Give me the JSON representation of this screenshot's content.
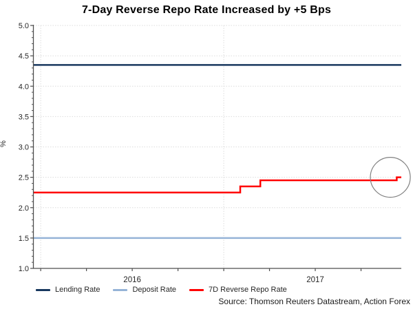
{
  "title": "7-Day Reverse Repo Rate Increased by +5 Bps",
  "source": "Source: Thomson Reuters Datastream, Action Forex",
  "legend": [
    {
      "label": "Lending Rate",
      "color": "#17375E"
    },
    {
      "label": "Deposit Rate",
      "color": "#95B3D7"
    },
    {
      "label": "7D Reverse Repo Rate",
      "color": "#FF0000"
    }
  ],
  "colors": {
    "gridline": "#DCDCDC",
    "axis": "#4D4D4D",
    "tick_label": "#262626",
    "annotation_circle": "#808080"
  },
  "chart_data": {
    "type": "line",
    "title": "7-Day Reverse Repo Rate Increased by +5 Bps",
    "xlabel": "",
    "ylabel": "%",
    "ylim": [
      1.0,
      5.0
    ],
    "y_tick_step": 0.5,
    "y_minor_tick_step": 0.1,
    "y_tick_labels": [
      "5.0",
      "4.5",
      "4.0",
      "3.5",
      "3.0",
      "2.5",
      "2.0",
      "1.5",
      "1.0"
    ],
    "xlim": [
      2015.96,
      2017.97
    ],
    "x_year_gridlines": [
      2016,
      2017
    ],
    "x_quarter_ticks": [
      2016.0,
      2016.25,
      2016.5,
      2016.75,
      2017.0,
      2017.25,
      2017.5,
      2017.75
    ],
    "x_year_labels": [
      {
        "text": "2016",
        "x": 2016.5
      },
      {
        "text": "2017",
        "x": 2017.5
      }
    ],
    "grid": true,
    "legend_position": "bottom",
    "series": [
      {
        "name": "Lending Rate",
        "color": "#17375E",
        "step_points": [
          {
            "x": 2015.96,
            "y": 4.35
          }
        ],
        "x_end": 2017.97
      },
      {
        "name": "Deposit Rate",
        "color": "#95B3D7",
        "step_points": [
          {
            "x": 2015.96,
            "y": 1.5
          }
        ],
        "x_end": 2017.97
      },
      {
        "name": "7D Reverse Repo Rate",
        "color": "#FF0000",
        "step_points": [
          {
            "x": 2015.96,
            "y": 2.25
          },
          {
            "x": 2017.09,
            "y": 2.35
          },
          {
            "x": 2017.2,
            "y": 2.45
          },
          {
            "x": 2017.945,
            "y": 2.5
          }
        ],
        "x_end": 2017.97
      }
    ],
    "annotation_circle": {
      "x": 2017.91,
      "y": 2.5,
      "radius_px": 29
    }
  }
}
